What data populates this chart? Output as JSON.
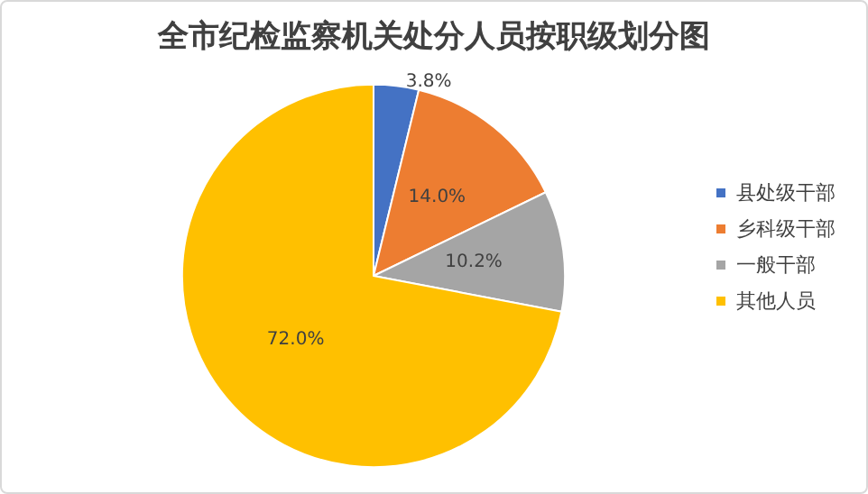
{
  "chart_data": {
    "type": "pie",
    "title": "全市纪检监察机关处分人员按职级划分图",
    "categories": [
      "县处级干部",
      "乡科级干部",
      "一般干部",
      "其他人员"
    ],
    "values": [
      3.8,
      14.0,
      10.2,
      72.0
    ],
    "colors": [
      "#4472c4",
      "#ed7d31",
      "#a5a5a5",
      "#ffc000"
    ],
    "value_labels": [
      "3.8%",
      "14.0%",
      "10.2%",
      "72.0%"
    ],
    "legend": "right"
  }
}
